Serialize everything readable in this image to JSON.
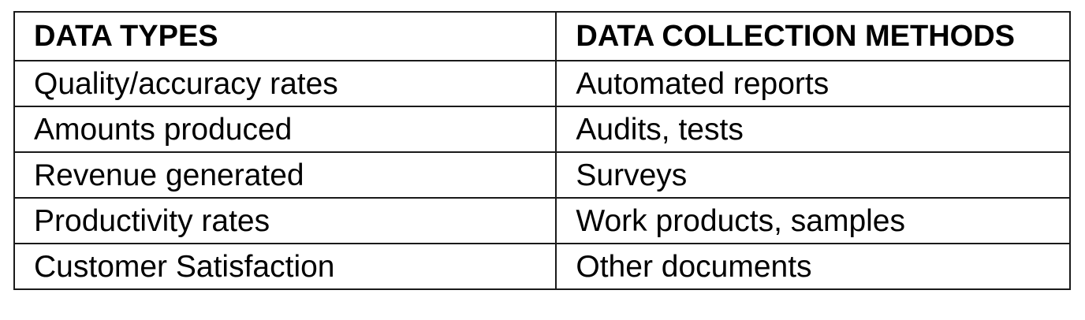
{
  "table": {
    "headers": [
      "DATA TYPES",
      "DATA COLLECTION METHODS"
    ],
    "rows": [
      [
        "Quality/accuracy rates",
        "Automated reports"
      ],
      [
        "Amounts produced",
        "Audits, tests"
      ],
      [
        "Revenue generated",
        "Surveys"
      ],
      [
        "Productivity rates",
        "Work products, samples"
      ],
      [
        "Customer Satisfaction",
        "Other documents"
      ]
    ]
  },
  "colors": {
    "border": "#1a1a1a",
    "text": "#000000",
    "background": "#ffffff"
  }
}
